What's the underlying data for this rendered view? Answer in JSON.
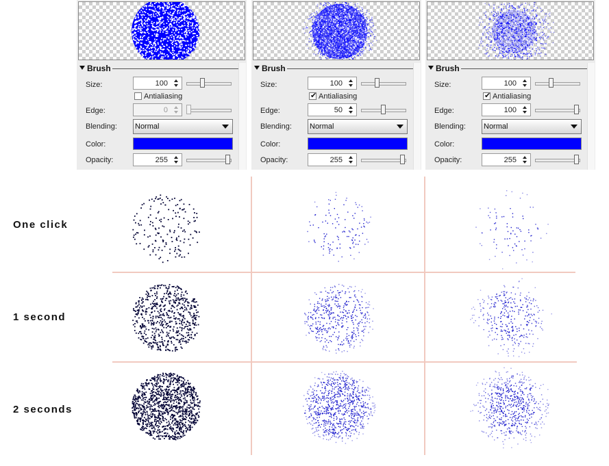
{
  "panels": [
    {
      "section_title": "Brush",
      "size_label": "Size:",
      "size_value": "100",
      "size_slider": 0.35,
      "antialias_label": "Antialiasing",
      "antialias_checked": false,
      "antialias_mark": "",
      "edge_label": "Edge:",
      "edge_value": "0",
      "edge_disabled": true,
      "edge_slider": 0.0,
      "blending_label": "Blending:",
      "blending_value": "Normal",
      "color_label": "Color:",
      "color": "#0000ff",
      "opacity_label": "Opacity:",
      "opacity_value": "255",
      "opacity_slider": 1.0,
      "preview_softness": 0
    },
    {
      "section_title": "Brush",
      "size_label": "Size:",
      "size_value": "100",
      "size_slider": 0.35,
      "antialias_label": "Antialiasing",
      "antialias_checked": true,
      "antialias_mark": "✔",
      "edge_label": "Edge:",
      "edge_value": "50",
      "edge_disabled": false,
      "edge_slider": 0.5,
      "blending_label": "Blending:",
      "blending_value": "Normal",
      "color_label": "Color:",
      "color": "#0000ff",
      "opacity_label": "Opacity:",
      "opacity_value": "255",
      "opacity_slider": 1.0,
      "preview_softness": 0.5
    },
    {
      "section_title": "Brush",
      "size_label": "Size:",
      "size_value": "100",
      "size_slider": 0.35,
      "antialias_label": "Antialiasing",
      "antialias_checked": true,
      "antialias_mark": "✔",
      "edge_label": "Edge:",
      "edge_value": "100",
      "edge_disabled": false,
      "edge_slider": 1.0,
      "blending_label": "Blending:",
      "blending_value": "Normal",
      "color_label": "Color:",
      "color": "#0000ff",
      "opacity_label": "Opacity:",
      "opacity_value": "255",
      "opacity_slider": 1.0,
      "preview_softness": 1.0
    }
  ],
  "rows": [
    {
      "label": "One click",
      "density": 0.12
    },
    {
      "label": "1 second",
      "density": 0.45
    },
    {
      "label": "2 seconds",
      "density": 0.85
    }
  ],
  "colors": {
    "dot_hard": "#000033",
    "dot_soft": "#1a1acc",
    "grid_line": "#f1c9bf",
    "accent": "#0000ff"
  }
}
